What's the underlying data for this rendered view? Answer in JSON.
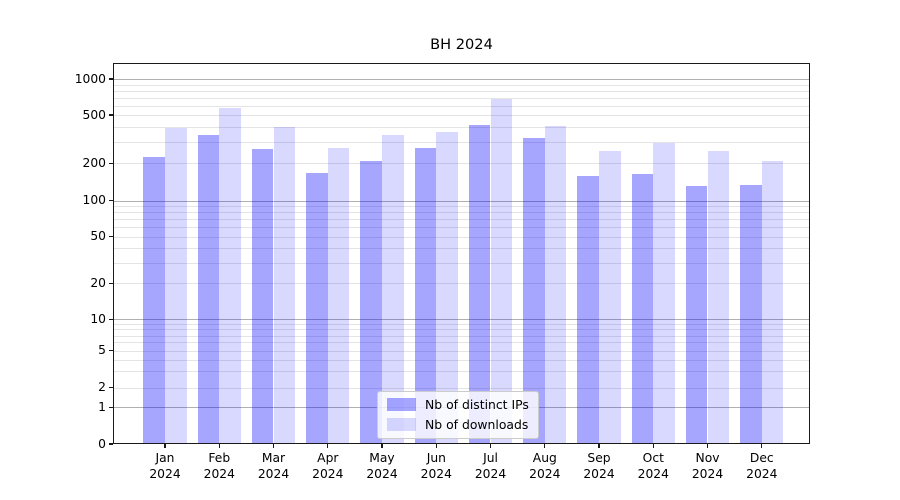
{
  "title": "BH 2024",
  "chart_data": {
    "type": "bar",
    "title": "BH 2024",
    "x_tick_months": [
      "Jan",
      "Feb",
      "Mar",
      "Apr",
      "May",
      "Jun",
      "Jul",
      "Aug",
      "Sep",
      "Oct",
      "Nov",
      "Dec"
    ],
    "x_tick_year": "2024",
    "y_ticks": [
      0,
      1,
      2,
      5,
      10,
      20,
      50,
      100,
      200,
      500,
      1000
    ],
    "y_scale": "symlog",
    "ylim": [
      0,
      1350
    ],
    "grid": "both",
    "legend_position": "lower center",
    "series": [
      {
        "name": "Nb of distinct IPs",
        "color": "#0000ff",
        "alpha": 0.35,
        "values": [
          224,
          345,
          264,
          168,
          209,
          269,
          414,
          321,
          159,
          164,
          130,
          134
        ]
      },
      {
        "name": "Nb of downloads",
        "color": "#0000ff",
        "alpha": 0.15,
        "values": [
          394,
          576,
          398,
          270,
          341,
          366,
          681,
          409,
          254,
          296,
          252,
          210
        ]
      }
    ]
  }
}
